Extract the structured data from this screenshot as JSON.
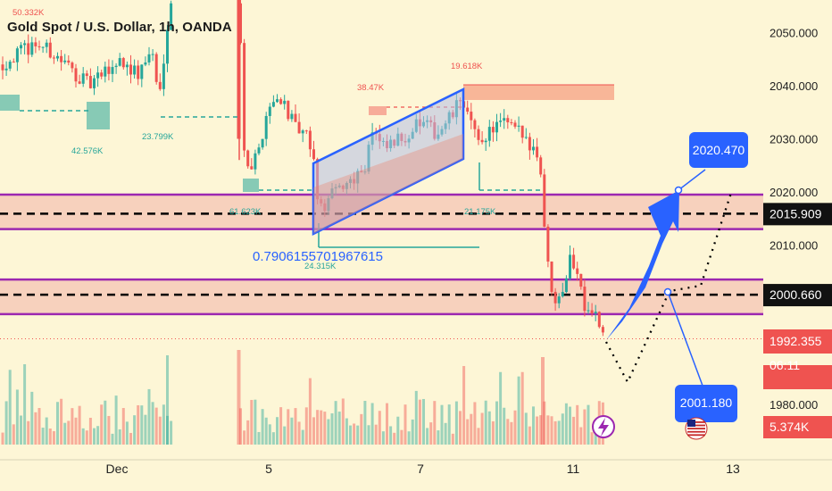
{
  "title": "Gold Spot / U.S. Dollar, 1h, OANDA",
  "chart_data": {
    "type": "candlestick",
    "symbol": "Gold Spot / U.S. Dollar",
    "interval": "1h",
    "source": "OANDA",
    "y_ticks": [
      "2050.000",
      "2040.000",
      "2030.000",
      "2020.000",
      "2010.000",
      "2000.000",
      "1980.000"
    ],
    "y_tick_values": [
      2050,
      2040,
      2030,
      2020,
      2010,
      2000,
      1980
    ],
    "x_ticks": [
      "Dec",
      "5",
      "7",
      "11",
      "13"
    ],
    "price_labels": [
      {
        "value": "2015.909",
        "style": "dark"
      },
      {
        "value": "2000.660",
        "style": "dark"
      },
      {
        "value": "1992.355",
        "style": "red"
      },
      {
        "value": "06:11",
        "style": "red"
      },
      {
        "value": "5.374K",
        "style": "red"
      }
    ],
    "volume_labels": [
      "50.332K",
      "42.576K",
      "23.799K",
      "38.47K",
      "19.618K",
      "61.623K",
      "21.175K",
      "24.315K"
    ],
    "annotations": {
      "fib_text": "0.7906155701967615",
      "target_high": "2020.470",
      "target_low": "2001.180"
    },
    "zones": [
      {
        "from": 2013.0,
        "to": 2019.5
      },
      {
        "from": 1997.0,
        "to": 2003.5
      }
    ],
    "colors": {
      "up": "#26a69a",
      "down": "#ef5350",
      "accent": "#2962ff",
      "zone_line": "#9c27b0"
    }
  },
  "icons": {
    "lightning": "lightning-icon",
    "flag": "us-flag-icon"
  }
}
